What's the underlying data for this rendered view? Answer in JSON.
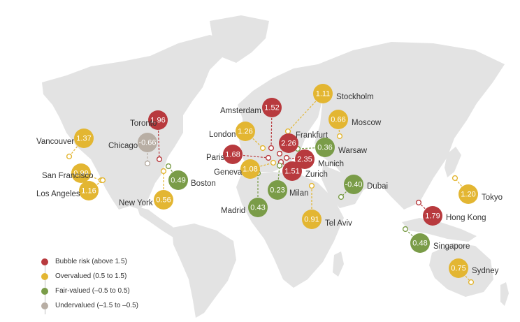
{
  "colors": {
    "bubble_risk": "#b83a3e",
    "overvalued": "#e3b632",
    "fair_valued": "#7a9c48",
    "undervalued": "#b8aea4",
    "land": "#e3e3e3"
  },
  "legend": [
    {
      "label": "Bubble risk (above 1.5)",
      "category": "bubble_risk"
    },
    {
      "label": "Overvalued (0.5 to 1.5)",
      "category": "overvalued"
    },
    {
      "label": "Fair-valued (–0.5 to 0.5)",
      "category": "fair_valued"
    },
    {
      "label": "Undervalued (–1.5 to –0.5)",
      "category": "undervalued"
    }
  ],
  "cities": [
    {
      "name": "Toronto",
      "value": "1.96",
      "category": "bubble_risk"
    },
    {
      "name": "Chicago",
      "value": "-0.66",
      "category": "undervalued"
    },
    {
      "name": "Vancouver",
      "value": "1.37",
      "category": "overvalued"
    },
    {
      "name": "San Francisco",
      "value": "0.99",
      "category": "overvalued"
    },
    {
      "name": "Los Angeles",
      "value": "1.16",
      "category": "overvalued"
    },
    {
      "name": "Boston",
      "value": "0.49",
      "category": "fair_valued"
    },
    {
      "name": "New York",
      "value": "0.56",
      "category": "overvalued"
    },
    {
      "name": "Amsterdam",
      "value": "1.52",
      "category": "bubble_risk"
    },
    {
      "name": "Stockholm",
      "value": "1.11",
      "category": "overvalued"
    },
    {
      "name": "London",
      "value": "1.26",
      "category": "overvalued"
    },
    {
      "name": "Frankfurt",
      "value": "2.26",
      "category": "bubble_risk"
    },
    {
      "name": "Moscow",
      "value": "0.66",
      "category": "overvalued"
    },
    {
      "name": "Warsaw",
      "value": "0.36",
      "category": "fair_valued"
    },
    {
      "name": "Paris",
      "value": "1.68",
      "category": "bubble_risk"
    },
    {
      "name": "Munich",
      "value": "2.35",
      "category": "bubble_risk"
    },
    {
      "name": "Geneva",
      "value": "1.08",
      "category": "overvalued"
    },
    {
      "name": "Zurich",
      "value": "1.51",
      "category": "bubble_risk"
    },
    {
      "name": "Milan",
      "value": "0.23",
      "category": "fair_valued"
    },
    {
      "name": "Madrid",
      "value": "0.43",
      "category": "fair_valued"
    },
    {
      "name": "Dubai",
      "value": "-0.40",
      "category": "fair_valued"
    },
    {
      "name": "Tel Aviv",
      "value": "0.91",
      "category": "overvalued"
    },
    {
      "name": "Tokyo",
      "value": "1.20",
      "category": "overvalued"
    },
    {
      "name": "Hong Kong",
      "value": "1.79",
      "category": "bubble_risk"
    },
    {
      "name": "Singapore",
      "value": "0.48",
      "category": "fair_valued"
    },
    {
      "name": "Sydney",
      "value": "0.75",
      "category": "overvalued"
    }
  ]
}
